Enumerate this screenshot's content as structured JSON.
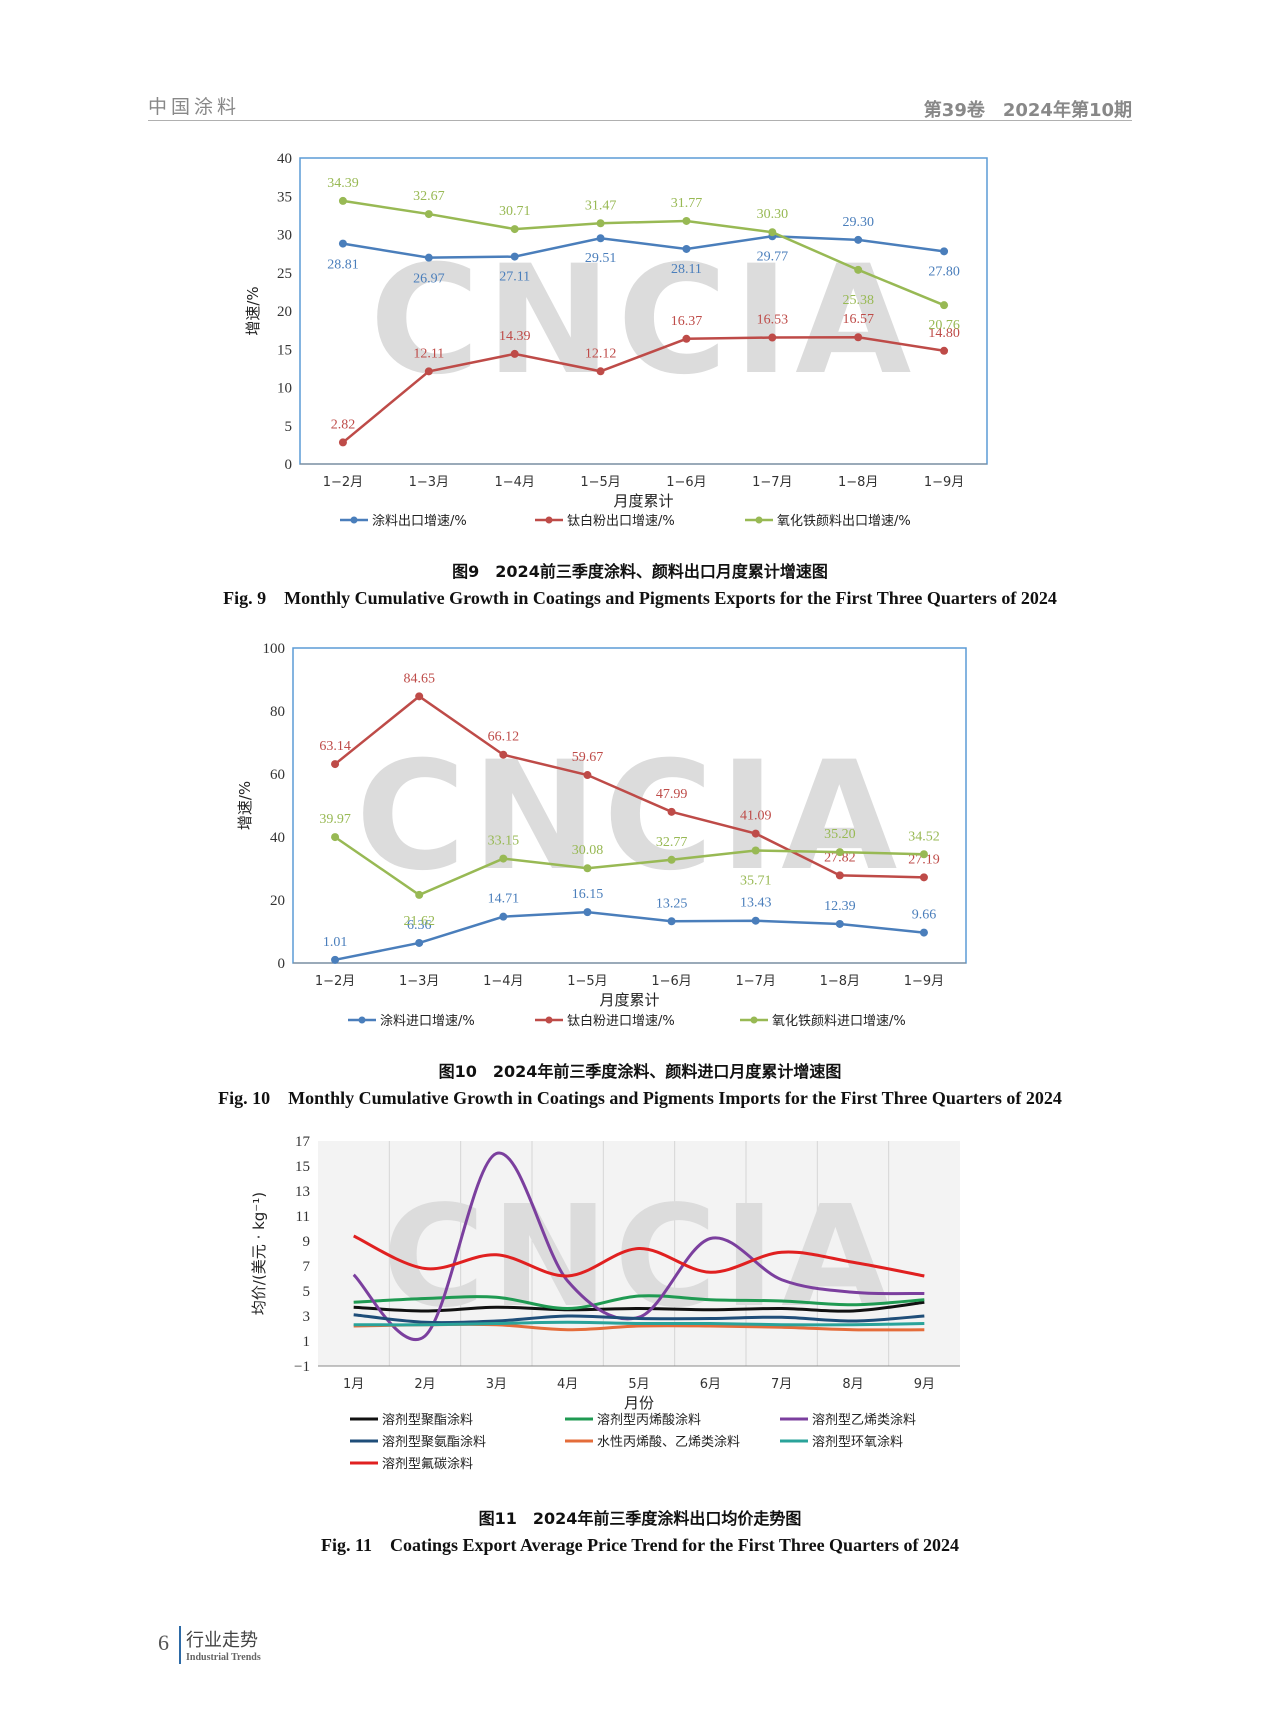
{
  "header": {
    "journal": "中国涂料",
    "issue": "第39卷　2024年第10期"
  },
  "figures": [
    {
      "caption_cn": "图9　2024前三季度涂料、颜料出口月度累计增速图",
      "caption_en": "Fig. 9　Monthly Cumulative Growth in Coatings and Pigments Exports for the First Three Quarters of 2024"
    },
    {
      "caption_cn": "图10　2024年前三季度涂料、颜料进口月度累计增速图",
      "caption_en": "Fig. 10　Monthly Cumulative Growth in Coatings and Pigments Imports for the First Three Quarters of 2024"
    },
    {
      "caption_cn": "图11　2024年前三季度涂料出口均价走势图",
      "caption_en": "Fig. 11　Coatings Export Average Price Trend for the First Three Quarters of 2024"
    }
  ],
  "watermark": "CNCIA",
  "footer": {
    "page": "6",
    "section_cn": "行业走势",
    "section_en": "Industrial Trends"
  },
  "chart_data": [
    {
      "type": "line",
      "xlabel": "月度累计",
      "ylabel": "增速/%",
      "ylim": [
        0,
        40
      ],
      "yticks": [
        0,
        5,
        10,
        15,
        20,
        25,
        30,
        35,
        40
      ],
      "categories": [
        "1−2月",
        "1−3月",
        "1−4月",
        "1−5月",
        "1−6月",
        "1−7月",
        "1−8月",
        "1−9月"
      ],
      "legend_position": "bottom",
      "series": [
        {
          "name": "涂料出口增速/%",
          "color": "#4a7ebb",
          "values": [
            28.81,
            26.97,
            27.11,
            29.51,
            28.11,
            29.77,
            29.3,
            27.8
          ]
        },
        {
          "name": "钛白粉出口增速/%",
          "color": "#be4b48",
          "values": [
            2.82,
            12.11,
            14.39,
            12.12,
            16.37,
            16.53,
            16.57,
            14.8
          ]
        },
        {
          "name": "氧化铁颜料出口增速/%",
          "color": "#98b954",
          "values": [
            34.39,
            32.67,
            30.71,
            31.47,
            31.77,
            30.3,
            25.38,
            20.76
          ]
        }
      ]
    },
    {
      "type": "line",
      "xlabel": "月度累计",
      "ylabel": "增速/%",
      "ylim": [
        0,
        100
      ],
      "yticks": [
        0,
        20,
        40,
        60,
        80,
        100
      ],
      "categories": [
        "1−2月",
        "1−3月",
        "1−4月",
        "1−5月",
        "1−6月",
        "1−7月",
        "1−8月",
        "1−9月"
      ],
      "legend_position": "bottom",
      "series": [
        {
          "name": "涂料进口增速/%",
          "color": "#4a7ebb",
          "values": [
            1.01,
            6.36,
            14.71,
            16.15,
            13.25,
            13.43,
            12.39,
            9.66
          ]
        },
        {
          "name": "钛白粉进口增速/%",
          "color": "#be4b48",
          "values": [
            63.14,
            84.65,
            66.12,
            59.67,
            47.99,
            41.09,
            27.82,
            27.19
          ]
        },
        {
          "name": "氧化铁颜料进口增速/%",
          "color": "#98b954",
          "values": [
            39.97,
            21.62,
            33.15,
            30.08,
            32.77,
            35.71,
            35.2,
            34.52
          ]
        }
      ]
    },
    {
      "type": "line",
      "xlabel": "月份",
      "ylabel": "均价/(美元 · kg⁻¹)",
      "ylim": [
        -1,
        17
      ],
      "yticks": [
        -1,
        1,
        3,
        5,
        7,
        9,
        11,
        13,
        15,
        17
      ],
      "ytick_labels": [
        "−1",
        "1",
        "3",
        "5",
        "7",
        "9",
        "11",
        "13",
        "15",
        "17"
      ],
      "smooth": true,
      "categories": [
        "1月",
        "2月",
        "3月",
        "4月",
        "5月",
        "6月",
        "7月",
        "8月",
        "9月"
      ],
      "legend_position": "bottom",
      "series": [
        {
          "name": "溶剂型聚酯涂料",
          "color": "#111111",
          "values": [
            3.7,
            3.4,
            3.7,
            3.5,
            3.6,
            3.5,
            3.6,
            3.4,
            4.1
          ]
        },
        {
          "name": "溶剂型丙烯酸涂料",
          "color": "#1f9a52",
          "values": [
            4.1,
            4.4,
            4.5,
            3.6,
            4.6,
            4.3,
            4.2,
            3.9,
            4.3
          ]
        },
        {
          "name": "溶剂型乙烯类涂料",
          "color": "#7b3f9e",
          "values": [
            6.3,
            1.4,
            16.0,
            5.8,
            2.9,
            9.2,
            5.9,
            4.9,
            4.8
          ]
        },
        {
          "name": "溶剂型聚氨酯涂料",
          "color": "#1f4e79",
          "values": [
            3.1,
            2.5,
            2.6,
            3.0,
            2.8,
            2.8,
            2.9,
            2.6,
            3.0
          ]
        },
        {
          "name": "水性丙烯酸、乙烯类涂料",
          "color": "#e46c3a",
          "values": [
            2.2,
            2.3,
            2.3,
            1.9,
            2.2,
            2.2,
            2.1,
            1.9,
            1.9
          ]
        },
        {
          "name": "溶剂型环氧涂料",
          "color": "#2aa39a",
          "values": [
            2.3,
            2.3,
            2.4,
            2.5,
            2.4,
            2.4,
            2.3,
            2.3,
            2.4
          ]
        },
        {
          "name": "溶剂型氟碳涂料",
          "color": "#e02020",
          "values": [
            9.4,
            6.8,
            7.9,
            6.2,
            8.4,
            6.5,
            8.1,
            7.3,
            6.2
          ]
        }
      ]
    }
  ]
}
